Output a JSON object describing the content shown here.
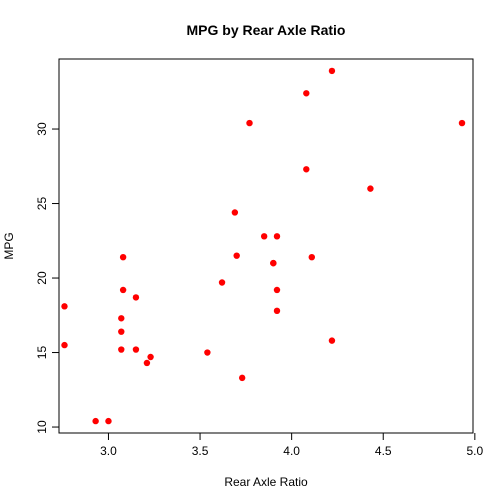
{
  "chart_data": {
    "type": "scatter",
    "title": "MPG by Rear Axle Ratio",
    "xlabel": "Rear Axle Ratio",
    "ylabel": "MPG",
    "xlim": [
      2.73,
      4.99
    ],
    "ylim": [
      9.6,
      34.7
    ],
    "xticks": [
      "3.0",
      "3.5",
      "4.0",
      "4.5",
      "5.0"
    ],
    "yticks": [
      "10",
      "15",
      "20",
      "25",
      "30"
    ],
    "grid": false,
    "point_color": "#ff0000",
    "points": [
      {
        "x": 3.9,
        "y": 21.0
      },
      {
        "x": 3.9,
        "y": 21.0
      },
      {
        "x": 3.85,
        "y": 22.8
      },
      {
        "x": 3.08,
        "y": 21.4
      },
      {
        "x": 3.15,
        "y": 18.7
      },
      {
        "x": 2.76,
        "y": 18.1
      },
      {
        "x": 3.21,
        "y": 14.3
      },
      {
        "x": 3.69,
        "y": 24.4
      },
      {
        "x": 3.92,
        "y": 22.8
      },
      {
        "x": 3.92,
        "y": 19.2
      },
      {
        "x": 3.92,
        "y": 17.8
      },
      {
        "x": 3.07,
        "y": 16.4
      },
      {
        "x": 3.07,
        "y": 17.3
      },
      {
        "x": 3.07,
        "y": 15.2
      },
      {
        "x": 2.93,
        "y": 10.4
      },
      {
        "x": 3.0,
        "y": 10.4
      },
      {
        "x": 3.23,
        "y": 14.7
      },
      {
        "x": 4.08,
        "y": 32.4
      },
      {
        "x": 4.93,
        "y": 30.4
      },
      {
        "x": 4.22,
        "y": 33.9
      },
      {
        "x": 3.7,
        "y": 21.5
      },
      {
        "x": 2.76,
        "y": 15.5
      },
      {
        "x": 3.15,
        "y": 15.2
      },
      {
        "x": 3.73,
        "y": 13.3
      },
      {
        "x": 3.08,
        "y": 19.2
      },
      {
        "x": 4.08,
        "y": 27.3
      },
      {
        "x": 4.43,
        "y": 26.0
      },
      {
        "x": 3.77,
        "y": 30.4
      },
      {
        "x": 4.22,
        "y": 15.8
      },
      {
        "x": 3.62,
        "y": 19.7
      },
      {
        "x": 3.54,
        "y": 15.0
      },
      {
        "x": 4.11,
        "y": 21.4
      }
    ]
  }
}
